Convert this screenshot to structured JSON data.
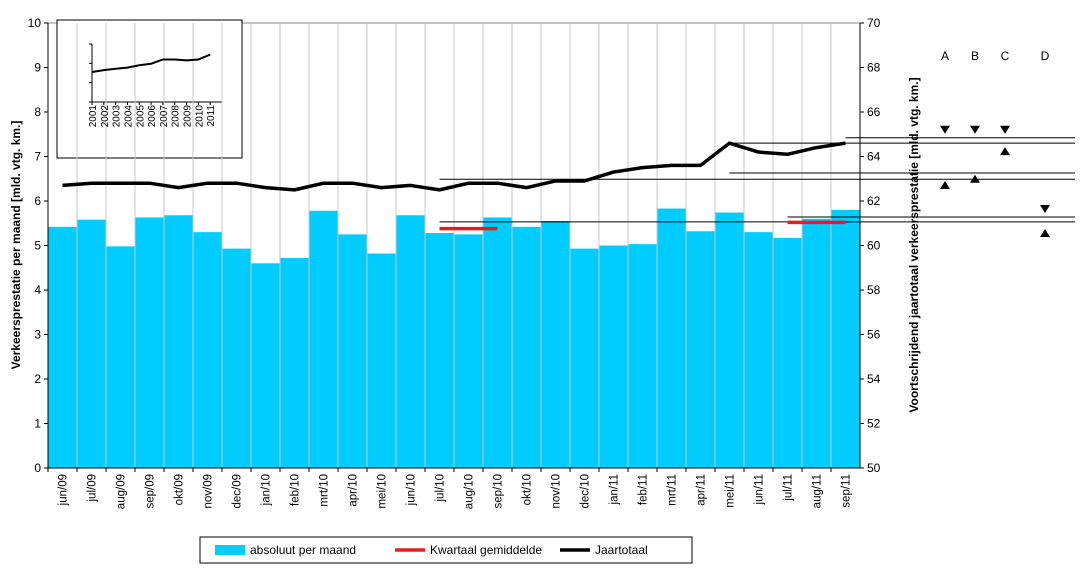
{
  "chart_data": [
    {
      "type": "combo",
      "y_label": "Verkeersprestatie per maand [mld. vtg. km.]",
      "y2_label": "Voortschrijdend jaartotaal verkeersprestatie [mld. vtg. km.]",
      "categories": [
        "jun/09",
        "jul/09",
        "aug/09",
        "sep/09",
        "okt/09",
        "nov/09",
        "dec/09",
        "jan/10",
        "feb/10",
        "mrt/10",
        "apr/10",
        "mei/10",
        "jun/10",
        "jul/10",
        "aug/10",
        "sep/10",
        "okt/10",
        "nov/10",
        "dec/10",
        "jan/11",
        "feb/11",
        "mrt/11",
        "apr/11",
        "mei/11",
        "jun/11",
        "jul/11",
        "aug/11",
        "sep/11"
      ],
      "series": [
        {
          "name": "absoluut per maand",
          "type": "bar",
          "color": "#00ccff",
          "values": [
            5.42,
            5.58,
            4.98,
            5.63,
            5.68,
            5.3,
            4.93,
            4.6,
            4.72,
            5.78,
            5.25,
            4.82,
            5.68,
            5.28,
            5.25,
            5.63,
            5.42,
            5.55,
            4.93,
            5.0,
            5.03,
            5.83,
            5.32,
            5.74,
            5.3,
            5.17,
            5.6,
            5.8
          ]
        },
        {
          "name": "Kwartaal gemiddelde",
          "type": "line",
          "color": "#e02020",
          "values": [
            null,
            null,
            null,
            null,
            null,
            null,
            null,
            null,
            null,
            null,
            null,
            null,
            null,
            5.38,
            5.38,
            5.38,
            null,
            null,
            null,
            null,
            null,
            null,
            null,
            null,
            null,
            5.52,
            5.52,
            5.52
          ]
        },
        {
          "name": "Jaartotaal",
          "type": "line",
          "axis": "y2",
          "color": "#000000",
          "values": [
            62.7,
            62.8,
            62.8,
            62.8,
            62.6,
            62.8,
            62.8,
            62.6,
            62.5,
            62.8,
            62.8,
            62.6,
            62.7,
            62.5,
            62.8,
            62.8,
            62.6,
            62.9,
            62.9,
            63.3,
            63.5,
            63.6,
            63.6,
            64.6,
            64.2,
            64.1,
            64.4,
            64.6
          ]
        }
      ],
      "ylim": [
        0,
        10
      ],
      "yticks": [
        0,
        1,
        2,
        3,
        4,
        5,
        6,
        7,
        8,
        9,
        10
      ],
      "y2lim": [
        50,
        70
      ],
      "y2ticks": [
        50,
        52,
        54,
        56,
        58,
        60,
        62,
        64,
        66,
        68,
        70
      ],
      "grid": "vertical",
      "legend": "bottom",
      "reference_lines": [
        {
          "y": 5.53,
          "start": "jul/10"
        },
        {
          "y": 5.64,
          "start": "jul/11"
        },
        {
          "y": 6.49,
          "start": "jul/10"
        },
        {
          "y": 6.63,
          "start": "mei/11"
        },
        {
          "y": 7.3,
          "start": "mei/11"
        },
        {
          "y": 7.42,
          "start": "sep/11"
        }
      ],
      "markers": {
        "labels": [
          "A",
          "B",
          "C",
          "D"
        ],
        "upper": [
          7.6,
          7.6,
          7.6,
          5.82
        ],
        "lower": [
          6.36,
          6.5,
          7.12,
          5.28
        ]
      }
    },
    {
      "type": "line",
      "x": [
        2001,
        2002,
        2003,
        2004,
        2005,
        2006,
        2007,
        2008,
        2009,
        2010,
        2011
      ],
      "values": [
        1.55,
        1.65,
        1.72,
        1.78,
        1.9,
        1.98,
        2.2,
        2.2,
        2.15,
        2.2,
        2.45
      ],
      "xlim": [
        2001,
        2012
      ],
      "ylim": [
        0,
        3
      ],
      "color": "#000000"
    }
  ]
}
